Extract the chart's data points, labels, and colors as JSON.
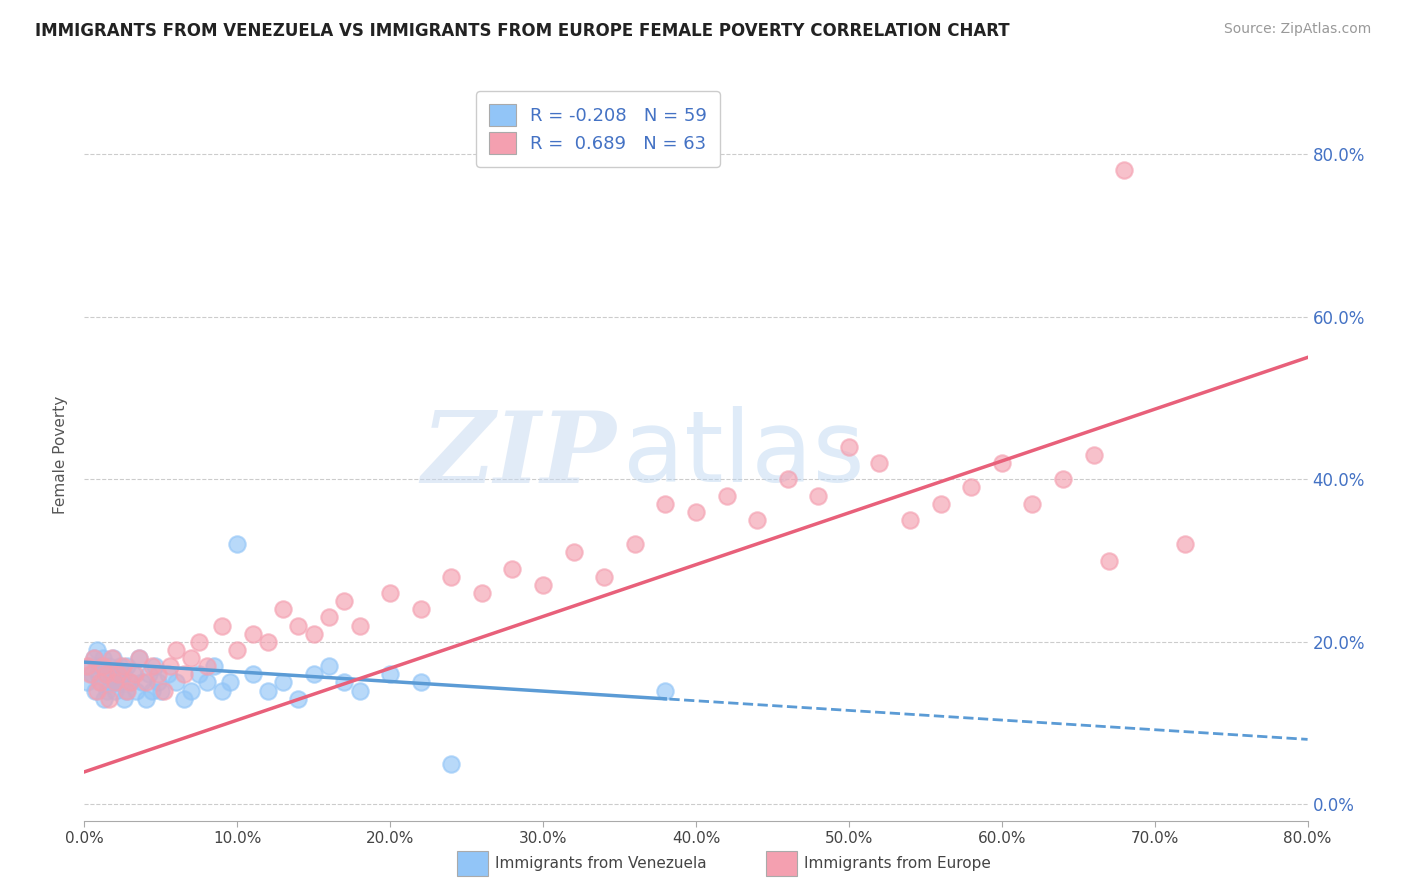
{
  "title": "IMMIGRANTS FROM VENEZUELA VS IMMIGRANTS FROM EUROPE FEMALE POVERTY CORRELATION CHART",
  "source_text": "Source: ZipAtlas.com",
  "ylabel": "Female Poverty",
  "legend_label_1": "Immigrants from Venezuela",
  "legend_label_2": "Immigrants from Europe",
  "R1": -0.208,
  "N1": 59,
  "R2": 0.689,
  "N2": 63,
  "color1": "#92c5f7",
  "color2": "#f4a0b0",
  "trend_color1": "#5b9bd5",
  "trend_color2": "#e8607a",
  "xmin": 0.0,
  "xmax": 0.8,
  "ymin": -0.02,
  "ymax": 0.88,
  "yticks": [
    0.0,
    0.2,
    0.4,
    0.6,
    0.8
  ],
  "xticks": [
    0.0,
    0.1,
    0.2,
    0.3,
    0.4,
    0.5,
    0.6,
    0.7,
    0.8
  ],
  "trend1_x0": 0.0,
  "trend1_x1": 0.8,
  "trend1_y0": 0.175,
  "trend1_y1": 0.08,
  "trend1_solid_end": 0.38,
  "trend2_x0": 0.0,
  "trend2_x1": 0.8,
  "trend2_y0": 0.04,
  "trend2_y1": 0.55,
  "scatter1_x": [
    0.002,
    0.004,
    0.005,
    0.006,
    0.007,
    0.008,
    0.009,
    0.01,
    0.011,
    0.012,
    0.013,
    0.014,
    0.015,
    0.016,
    0.017,
    0.018,
    0.019,
    0.02,
    0.021,
    0.022,
    0.023,
    0.024,
    0.025,
    0.026,
    0.027,
    0.028,
    0.03,
    0.032,
    0.034,
    0.036,
    0.038,
    0.04,
    0.042,
    0.044,
    0.046,
    0.048,
    0.05,
    0.055,
    0.06,
    0.065,
    0.07,
    0.075,
    0.08,
    0.085,
    0.09,
    0.095,
    0.1,
    0.11,
    0.12,
    0.13,
    0.14,
    0.15,
    0.16,
    0.17,
    0.18,
    0.2,
    0.22,
    0.24,
    0.38
  ],
  "scatter1_y": [
    0.15,
    0.17,
    0.16,
    0.18,
    0.14,
    0.19,
    0.16,
    0.15,
    0.17,
    0.18,
    0.13,
    0.16,
    0.14,
    0.17,
    0.15,
    0.16,
    0.18,
    0.14,
    0.15,
    0.16,
    0.17,
    0.15,
    0.16,
    0.13,
    0.14,
    0.17,
    0.15,
    0.16,
    0.14,
    0.18,
    0.15,
    0.13,
    0.16,
    0.14,
    0.17,
    0.15,
    0.14,
    0.16,
    0.15,
    0.13,
    0.14,
    0.16,
    0.15,
    0.17,
    0.14,
    0.15,
    0.32,
    0.16,
    0.14,
    0.15,
    0.13,
    0.16,
    0.17,
    0.15,
    0.14,
    0.16,
    0.15,
    0.05,
    0.14
  ],
  "scatter2_x": [
    0.002,
    0.004,
    0.006,
    0.008,
    0.01,
    0.012,
    0.014,
    0.016,
    0.018,
    0.02,
    0.022,
    0.025,
    0.028,
    0.03,
    0.033,
    0.036,
    0.04,
    0.044,
    0.048,
    0.052,
    0.056,
    0.06,
    0.065,
    0.07,
    0.075,
    0.08,
    0.09,
    0.1,
    0.11,
    0.12,
    0.13,
    0.14,
    0.15,
    0.16,
    0.17,
    0.18,
    0.2,
    0.22,
    0.24,
    0.26,
    0.28,
    0.3,
    0.32,
    0.34,
    0.36,
    0.38,
    0.4,
    0.42,
    0.44,
    0.46,
    0.48,
    0.5,
    0.52,
    0.54,
    0.56,
    0.58,
    0.6,
    0.62,
    0.64,
    0.66,
    0.67,
    0.68,
    0.72
  ],
  "scatter2_y": [
    0.17,
    0.16,
    0.18,
    0.14,
    0.15,
    0.17,
    0.16,
    0.13,
    0.18,
    0.15,
    0.16,
    0.17,
    0.14,
    0.15,
    0.16,
    0.18,
    0.15,
    0.17,
    0.16,
    0.14,
    0.17,
    0.19,
    0.16,
    0.18,
    0.2,
    0.17,
    0.22,
    0.19,
    0.21,
    0.2,
    0.24,
    0.22,
    0.21,
    0.23,
    0.25,
    0.22,
    0.26,
    0.24,
    0.28,
    0.26,
    0.29,
    0.27,
    0.31,
    0.28,
    0.32,
    0.37,
    0.36,
    0.38,
    0.35,
    0.4,
    0.38,
    0.44,
    0.42,
    0.35,
    0.37,
    0.39,
    0.42,
    0.37,
    0.4,
    0.43,
    0.3,
    0.78,
    0.32
  ],
  "watermark_zip": "ZIP",
  "watermark_atlas": "atlas",
  "background_color": "#ffffff",
  "grid_color": "#cccccc",
  "title_fontsize": 12,
  "source_fontsize": 10,
  "tick_fontsize": 11,
  "ytick_fontsize": 12,
  "legend_fontsize": 13,
  "ylabel_fontsize": 11
}
